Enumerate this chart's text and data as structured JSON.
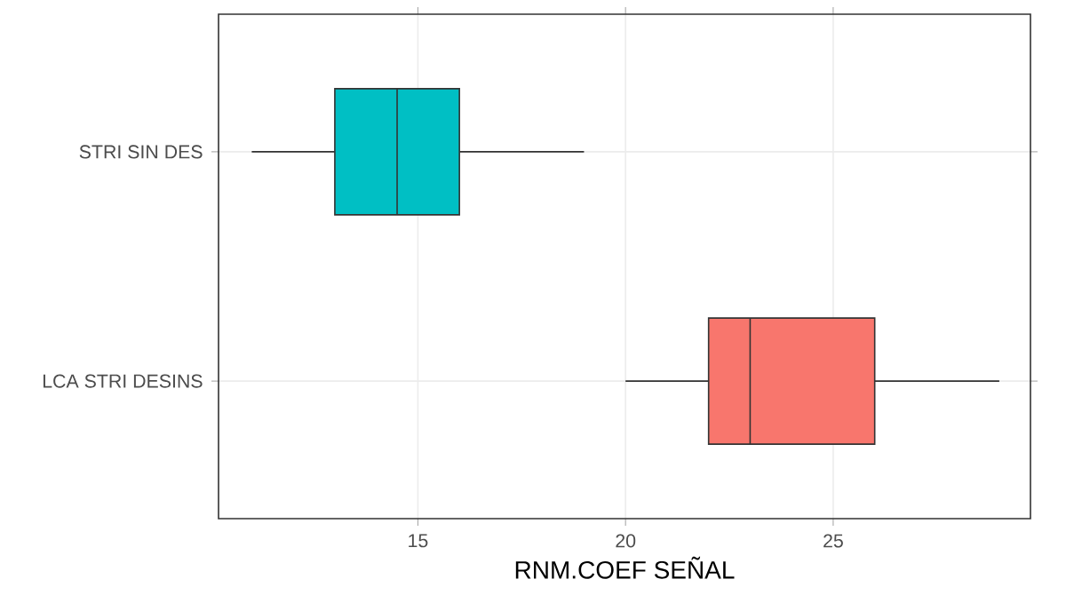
{
  "chart_data": {
    "type": "box",
    "orientation": "horizontal",
    "xlabel": "RNM.COEF SEÑAL",
    "categories": [
      "STRI SIN DES",
      "LCA STRI DESINS"
    ],
    "colors": [
      "#00bfc4",
      "#f8766d"
    ],
    "boxes": [
      {
        "low": 11,
        "q1": 13,
        "median": 14.5,
        "q3": 16,
        "high": 19
      },
      {
        "low": 20,
        "q1": 22,
        "median": 23,
        "q3": 26,
        "high": 29
      }
    ],
    "xlim": [
      10.2,
      29.75
    ],
    "xticks": [
      15,
      20,
      25
    ],
    "grid": true
  }
}
